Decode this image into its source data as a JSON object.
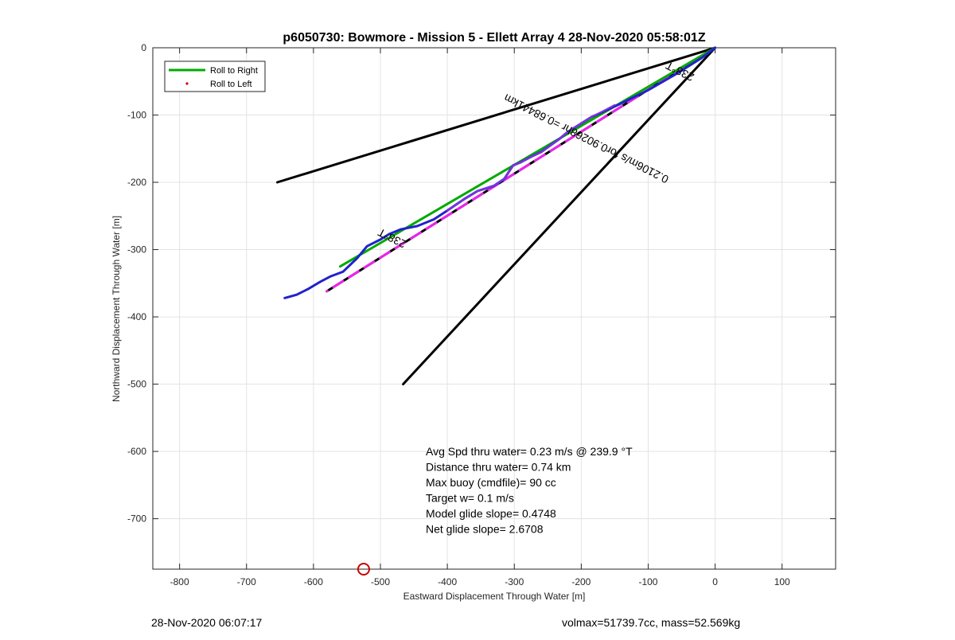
{
  "chart_data": {
    "type": "line",
    "title": "p6050730: Bowmore - Mission 5 - Ellett Array 4 28-Nov-2020 05:58:01Z",
    "xlabel": "Eastward Displacement Through Water [m]",
    "ylabel": "Northward Displacement Through Water [m]",
    "xlim": [
      -840,
      180
    ],
    "ylim": [
      -775,
      0
    ],
    "x_ticks": [
      -800,
      -700,
      -600,
      -500,
      -400,
      -300,
      -200,
      -100,
      0,
      100
    ],
    "y_ticks": [
      0,
      -100,
      -200,
      -300,
      -400,
      -500,
      -600,
      -700
    ],
    "grid": true,
    "legend_position": "top-left",
    "legend": [
      {
        "name": "Roll to Right",
        "color": "#00aa00",
        "style": "line"
      },
      {
        "name": "Roll to Left",
        "color": "#dd0000",
        "style": "dot"
      }
    ],
    "series": [
      {
        "key": "bearing_upper",
        "color": "#000000",
        "width": 3,
        "dash": "",
        "x": [
          0,
          -654
        ],
        "y": [
          0,
          -200
        ]
      },
      {
        "key": "bearing_lower",
        "color": "#000000",
        "width": 3,
        "dash": "",
        "x": [
          0,
          -466
        ],
        "y": [
          0,
          -500
        ]
      },
      {
        "key": "track_dashed_black",
        "color": "#000000",
        "width": 3,
        "dash": "",
        "x": [
          0,
          -580
        ],
        "y": [
          0,
          -362
        ]
      },
      {
        "key": "track_dashed_magenta",
        "color": "#ee22ee",
        "width": 3,
        "dash": "14 9",
        "x": [
          0,
          -580
        ],
        "y": [
          0,
          -362
        ]
      },
      {
        "key": "roll_right",
        "color": "#00aa00",
        "width": 3,
        "dash": "",
        "x": [
          0,
          -560
        ],
        "y": [
          0,
          -325
        ]
      },
      {
        "key": "track_blue",
        "color": "#2222cc",
        "width": 3,
        "dash": "",
        "x": [
          0,
          -20,
          -60,
          -100,
          -145,
          -185,
          -220,
          -232,
          -260,
          -275,
          -290,
          -302,
          -315,
          -330,
          -355,
          -375,
          -400,
          -420,
          -445,
          -470,
          -487,
          -500,
          -520,
          -535,
          -556,
          -575,
          -590,
          -607,
          -625,
          -643
        ],
        "y": [
          0,
          -15,
          -40,
          -63,
          -85,
          -103,
          -125,
          -135,
          -155,
          -162,
          -170,
          -175,
          -195,
          -205,
          -213,
          -225,
          -242,
          -255,
          -265,
          -270,
          -277,
          -285,
          -295,
          -313,
          -333,
          -340,
          -348,
          -358,
          -367,
          -372
        ]
      },
      {
        "key": "track_blue_overlay",
        "color": "#8833dd",
        "width": 2,
        "dash": "",
        "x": [
          -150,
          -185,
          -220,
          -232,
          -260,
          -275,
          -290,
          -302,
          -315,
          -330,
          -355,
          -375,
          -400
        ],
        "y": [
          -85,
          -103,
          -125,
          -135,
          -155,
          -162,
          -170,
          -175,
          -195,
          -205,
          -213,
          -225,
          -242
        ]
      }
    ],
    "labels": [
      {
        "text": "238°T",
        "x": -50,
        "y": -30,
        "angle": 207
      },
      {
        "text": "238°T",
        "x": -480,
        "y": -278,
        "angle": 207
      },
      {
        "text": "0.2106m/s for0.90268hr =0.68441km",
        "x": -190,
        "y": -130,
        "angle": 207
      }
    ],
    "marker": {
      "x": -525,
      "y": -775,
      "color": "#cc0000"
    },
    "annotations": [
      "Avg Spd thru water=  0.23 m/s @ 239.9 °T",
      "Distance thru water=  0.74 km",
      "Max buoy (cmdfile)= 90 cc",
      "Target w= 0.1 m/s",
      "Model glide slope= 0.4748",
      "Net glide slope= 2.6708"
    ]
  },
  "footer": {
    "left": "28-Nov-2020 06:07:17",
    "right": "volmax=51739.7cc, mass=52.569kg"
  }
}
